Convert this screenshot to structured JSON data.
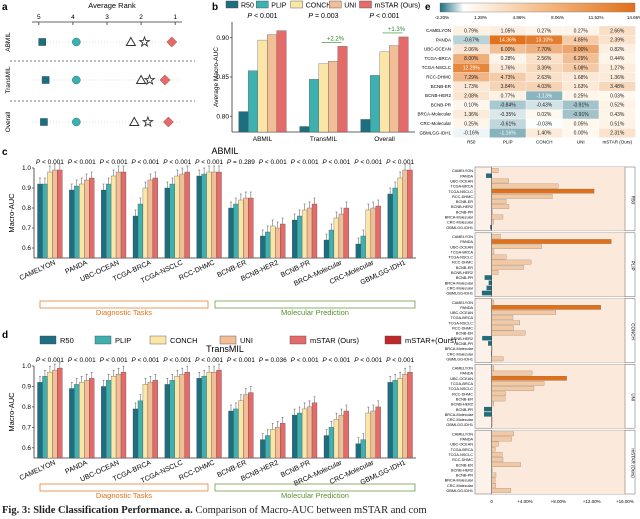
{
  "panel_letters": {
    "a": "a",
    "b": "b",
    "c": "c",
    "d": "d",
    "e": "e"
  },
  "colors": {
    "R50": "#1f6e80",
    "PLIP": "#3fb0b0",
    "CONCH": "#fbe6a8",
    "UNI": "#f1be98",
    "mSTAR (Ours)": "#e56b6b",
    "mSTAR+ (Ours)": "#c0282c",
    "diag": "#e0701a",
    "mol": "#5a8f2f"
  },
  "chart_data": [
    {
      "id": "a",
      "type": "scatter",
      "title": "Average Rank",
      "xticks": [
        "5",
        "4",
        "3",
        "2",
        "1"
      ],
      "xlim": [
        5.2,
        0.8
      ],
      "rows": [
        "ABMIL",
        "TransMIL",
        "Overall"
      ],
      "series": [
        {
          "name": "R50",
          "marker": "square",
          "values": [
            4.9,
            4.8,
            4.85
          ]
        },
        {
          "name": "PLIP",
          "marker": "circle",
          "values": [
            3.9,
            3.9,
            3.9
          ]
        },
        {
          "name": "CONCH",
          "marker": "triangle",
          "values": [
            2.3,
            2.0,
            2.2
          ]
        },
        {
          "name": "UNI",
          "marker": "star",
          "values": [
            1.9,
            1.75,
            1.8
          ]
        },
        {
          "name": "mSTAR (Ours)",
          "marker": "diamond",
          "values": [
            1.1,
            1.3,
            1.2
          ]
        }
      ]
    },
    {
      "id": "b",
      "type": "bar",
      "ylabel": "Average Macro-AUC",
      "ylim": [
        0.78,
        0.92
      ],
      "yticks": [
        "0.80",
        "0.85",
        "0.90"
      ],
      "categories": [
        "ABMIL",
        "TransMIL",
        "Overall"
      ],
      "pvalues": [
        "P < 0.001",
        "P = 0.003",
        "P < 0.001"
      ],
      "gains": [
        "",
        "+2.2%",
        "+1.3%"
      ],
      "legend": [
        "R50",
        "PLIP",
        "CONCH",
        "UNI",
        "mSTAR (Ours)"
      ],
      "series": [
        {
          "name": "R50",
          "values": [
            0.806,
            0.787,
            0.796
          ]
        },
        {
          "name": "PLIP",
          "values": [
            0.858,
            0.847,
            0.852
          ]
        },
        {
          "name": "CONCH",
          "values": [
            0.897,
            0.867,
            0.882
          ]
        },
        {
          "name": "UNI",
          "values": [
            0.904,
            0.87,
            0.89
          ]
        },
        {
          "name": "mSTAR (Ours)",
          "values": [
            0.909,
            0.889,
            0.901
          ]
        }
      ]
    },
    {
      "id": "c",
      "type": "bar",
      "title": "ABMIL",
      "ylabel": "Macro-AUC",
      "ylim": [
        0.55,
        1.0
      ],
      "yticks": [
        "0.6",
        "0.7",
        "0.8",
        "0.9",
        "1.0"
      ],
      "categories": [
        "CAMELYON",
        "PANDA",
        "UBC-OCEAN",
        "TCGA-BRCA",
        "TCGA-NSCLC",
        "RCC-DHMC",
        "BCNB-ER",
        "BCNB-HER2",
        "BCNB-PR",
        "BRCA-Molecular",
        "CRC-Molecular",
        "GBMLGG-IDH1"
      ],
      "pvalues": [
        "P < 0.001",
        "P < 0.001",
        "P < 0.001",
        "P < 0.001",
        "P < 0.001",
        "P < 0.001",
        "P = 0.289",
        "P < 0.001",
        "P < 0.001",
        "P < 0.001",
        "P < 0.001",
        "P < 0.001"
      ],
      "series": [
        {
          "name": "R50",
          "values": [
            0.92,
            0.89,
            0.89,
            0.76,
            0.9,
            0.96,
            0.8,
            0.66,
            0.74,
            0.64,
            0.62,
            0.87
          ]
        },
        {
          "name": "PLIP",
          "values": [
            0.92,
            0.91,
            0.92,
            0.82,
            0.92,
            0.97,
            0.82,
            0.68,
            0.76,
            0.69,
            0.66,
            0.9
          ]
        },
        {
          "name": "CONCH",
          "values": [
            0.98,
            0.92,
            0.96,
            0.9,
            0.96,
            0.98,
            0.84,
            0.71,
            0.79,
            0.75,
            0.79,
            0.95
          ]
        },
        {
          "name": "UNI",
          "values": [
            0.99,
            0.94,
            0.98,
            0.94,
            0.97,
            0.98,
            0.85,
            0.7,
            0.8,
            0.77,
            0.8,
            0.99
          ]
        },
        {
          "name": "mSTAR (Ours)",
          "values": [
            0.99,
            0.95,
            0.98,
            0.95,
            0.98,
            0.98,
            0.85,
            0.72,
            0.82,
            0.8,
            0.81,
            0.99
          ]
        }
      ]
    },
    {
      "id": "d",
      "type": "bar",
      "title": "TransMIL",
      "ylabel": "Macro-AUC",
      "ylim": [
        0.55,
        1.0
      ],
      "yticks": [
        "0.6",
        "0.7",
        "0.8",
        "0.9",
        "1.0"
      ],
      "categories": [
        "CAMELYON",
        "PANDA",
        "UBC-OCEAN",
        "TCGA-BRCA",
        "TCGA-NSCLC",
        "RCC-DHMC",
        "BCNB-ER",
        "BCNB-HER2",
        "BCNB-PR",
        "BRCA-Molecular",
        "CRC-Molecular",
        "GBMLGG-IDH1"
      ],
      "pvalues": [
        "P < 0.001",
        "P < 0.001",
        "P < 0.001",
        "P < 0.001",
        "P < 0.001",
        "P < 0.001",
        "P < 0.001",
        "P = 0.036",
        "P < 0.001",
        "P < 0.001",
        "P < 0.001",
        "P < 0.001"
      ],
      "series": [
        {
          "name": "R50",
          "values": [
            0.92,
            0.89,
            0.9,
            0.79,
            0.91,
            0.94,
            0.78,
            0.64,
            0.76,
            0.66,
            0.62,
            0.92
          ]
        },
        {
          "name": "PLIP",
          "values": [
            0.95,
            0.91,
            0.93,
            0.83,
            0.93,
            0.95,
            0.79,
            0.66,
            0.77,
            0.7,
            0.64,
            0.93
          ]
        },
        {
          "name": "CONCH",
          "values": [
            0.97,
            0.92,
            0.95,
            0.91,
            0.95,
            0.97,
            0.83,
            0.69,
            0.79,
            0.74,
            0.77,
            0.94
          ]
        },
        {
          "name": "UNI",
          "values": [
            0.98,
            0.93,
            0.96,
            0.92,
            0.96,
            0.97,
            0.86,
            0.7,
            0.8,
            0.76,
            0.78,
            0.96
          ]
        },
        {
          "name": "mSTAR (Ours)",
          "values": [
            0.99,
            0.94,
            0.97,
            0.93,
            0.97,
            0.98,
            0.87,
            0.72,
            0.82,
            0.78,
            0.8,
            0.97
          ]
        }
      ]
    },
    {
      "id": "legend",
      "type": "legend",
      "entries": [
        "R50",
        "PLIP",
        "CONCH",
        "UNI",
        "mSTAR (Ours)",
        "mSTAR+(Ours)"
      ]
    },
    {
      "id": "e_heatmap",
      "type": "heatmap",
      "colorbar_ticks": [
        "-2.20%",
        "1.28%",
        "4.86%",
        "8.06%",
        "11.52%",
        "14.66%"
      ],
      "columns": [
        "R50",
        "PLIP",
        "CONCH",
        "UNI",
        "mSTAR (Ours)"
      ],
      "rows": [
        "CAMELYON",
        "PANDA",
        "UBC-OCEAN",
        "TCGA-BRCA",
        "TCGA-NSCLC",
        "RCC-DHMC",
        "BCNB-ER",
        "BCNB-HER2",
        "BCNB-PR",
        "BRCA-Molecular",
        "CRC-Molecular",
        "GBMLGG-IDH1"
      ],
      "cells": [
        [
          "0.79%",
          "1.05%",
          "0.27%",
          "0.27%",
          "2.66%"
        ],
        [
          "-0.67%",
          "14.36%",
          "13.10%",
          "4.85%",
          "2.39%"
        ],
        [
          "2.06%",
          "6.00%",
          "7.70%",
          "9.00%",
          "0.82%"
        ],
        [
          "8.00%",
          "0.28%",
          "2.56%",
          "6.29%",
          "0.44%"
        ],
        [
          "12.29%",
          "1.76%",
          "3.39%",
          "5.08%",
          "1.27%"
        ],
        [
          "7.29%",
          "4.73%",
          "2.63%",
          "1.68%",
          "1.36%"
        ],
        [
          "1.73%",
          "3.84%",
          "4.03%",
          "1.63%",
          "3.48%"
        ],
        [
          "2.08%",
          "0.77%",
          "-1.13%",
          "0.25%",
          "0.03%"
        ],
        [
          "0.10%",
          "-0.84%",
          "-0.43%",
          "-0.91%",
          "0.52%"
        ],
        [
          "1.36%",
          "-0.35%",
          "0.02%",
          "-0.91%",
          "0.43%"
        ],
        [
          "0.25%",
          "-0.61%",
          "-0.03%",
          "0.05%",
          "0.51%"
        ],
        [
          "-0.16%",
          "-1.16%",
          "1.40%",
          "0.00%",
          "2.31%"
        ]
      ]
    },
    {
      "id": "e_bars",
      "type": "bar",
      "orientation": "horizontal",
      "xlim": [
        -2,
        16
      ],
      "xticks": [
        "0",
        "+4.00%",
        "+8.00%",
        "+12.00%",
        "+16.00%"
      ],
      "groups": [
        "R50",
        "PLIP",
        "CONCH",
        "UNI",
        "mSTAR (Ours)"
      ],
      "rows": [
        "CAMELYON",
        "PANDA",
        "UBC-OCEAN",
        "TCGA-BRCA",
        "TCGA-NSCLC",
        "RCC-DHMC",
        "BCNB-ER",
        "BCNB-HER2",
        "BCNB-PR",
        "BRCA-Molecular",
        "CRC-Molecular",
        "GBMLGG-IDH1"
      ]
    }
  ],
  "labels": {
    "diag": "Diagnostic Tasks",
    "mol": "Molecular Prediction"
  },
  "caption": {
    "fig": "Fig. 3:",
    "title": "Slide Classification Performance.",
    "a": "a.",
    "body": "Comparison of Macro-AUC between mSTAR and com"
  }
}
